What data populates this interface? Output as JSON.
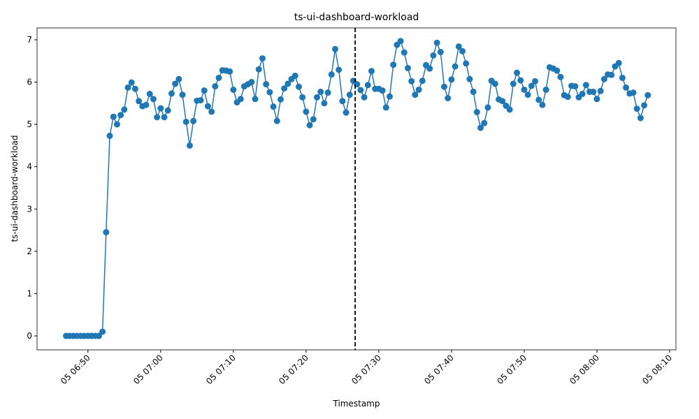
{
  "chart_data": {
    "type": "line",
    "title": "ts-ui-dashboard-workload",
    "xlabel": "Timestamp",
    "ylabel": "ts-ui-dashboard-workload",
    "color": "#1f77b4",
    "x": [
      "05 06:47:00",
      "05 06:47:30",
      "05 06:48:00",
      "05 06:48:30",
      "05 06:49:00",
      "05 06:49:30",
      "05 06:50:00",
      "05 06:50:30",
      "05 06:51:00",
      "05 06:51:30",
      "05 06:52:00",
      "05 06:52:30",
      "05 06:53:00",
      "05 06:53:30",
      "05 06:54:00",
      "05 06:54:30",
      "05 06:55:00",
      "05 06:55:30",
      "05 06:56:00",
      "05 06:56:30",
      "05 06:57:00",
      "05 06:57:30",
      "05 06:58:00",
      "05 06:58:30",
      "05 06:59:00",
      "05 06:59:30",
      "05 07:00:00",
      "05 07:00:30",
      "05 07:01:00",
      "05 07:01:30",
      "05 07:02:00",
      "05 07:02:30",
      "05 07:03:00",
      "05 07:03:30",
      "05 07:04:00",
      "05 07:04:30",
      "05 07:05:00",
      "05 07:05:30",
      "05 07:06:00",
      "05 07:06:30",
      "05 07:07:00",
      "05 07:07:30",
      "05 07:08:00",
      "05 07:08:30",
      "05 07:09:00",
      "05 07:09:30",
      "05 07:10:00",
      "05 07:10:30",
      "05 07:11:00",
      "05 07:11:30",
      "05 07:12:00",
      "05 07:12:30",
      "05 07:13:00",
      "05 07:13:30",
      "05 07:14:00",
      "05 07:14:30",
      "05 07:15:00",
      "05 07:15:30",
      "05 07:16:00",
      "05 07:16:30",
      "05 07:17:00",
      "05 07:17:30",
      "05 07:18:00",
      "05 07:18:30",
      "05 07:19:00",
      "05 07:19:30",
      "05 07:20:00",
      "05 07:20:30",
      "05 07:21:00",
      "05 07:21:30",
      "05 07:22:00",
      "05 07:22:30",
      "05 07:23:00",
      "05 07:23:30",
      "05 07:24:00",
      "05 07:24:30",
      "05 07:25:00",
      "05 07:25:30",
      "05 07:26:00",
      "05 07:26:30",
      "05 07:27:00",
      "05 07:27:30",
      "05 07:28:00",
      "05 07:28:30",
      "05 07:29:00",
      "05 07:29:30",
      "05 07:30:00",
      "05 07:30:30",
      "05 07:31:00",
      "05 07:31:30",
      "05 07:32:00",
      "05 07:32:30",
      "05 07:33:00",
      "05 07:33:30",
      "05 07:34:00",
      "05 07:34:30",
      "05 07:35:00",
      "05 07:35:30",
      "05 07:36:00",
      "05 07:36:30",
      "05 07:37:00",
      "05 07:37:30",
      "05 07:38:00",
      "05 07:38:30",
      "05 07:39:00",
      "05 07:39:30",
      "05 07:40:00",
      "05 07:40:30",
      "05 07:41:00",
      "05 07:41:30",
      "05 07:42:00",
      "05 07:42:30",
      "05 07:43:00",
      "05 07:43:30",
      "05 07:44:00",
      "05 07:44:30",
      "05 07:45:00",
      "05 07:45:30",
      "05 07:46:00",
      "05 07:46:30",
      "05 07:47:00",
      "05 07:47:30",
      "05 07:48:00",
      "05 07:48:30",
      "05 07:49:00",
      "05 07:49:30",
      "05 07:50:00",
      "05 07:50:30",
      "05 07:51:00",
      "05 07:51:30",
      "05 07:52:00",
      "05 07:52:30",
      "05 07:53:00",
      "05 07:53:30",
      "05 07:54:00",
      "05 07:54:30",
      "05 07:55:00",
      "05 07:55:30",
      "05 07:56:00",
      "05 07:56:30",
      "05 07:57:00",
      "05 07:57:30",
      "05 07:58:00",
      "05 07:58:30",
      "05 07:59:00",
      "05 07:59:30",
      "05 08:00:00",
      "05 08:00:30",
      "05 08:01:00",
      "05 08:01:30",
      "05 08:02:00",
      "05 08:02:30",
      "05 08:03:00",
      "05 08:03:30",
      "05 08:04:00",
      "05 08:04:30",
      "05 08:05:00",
      "05 08:05:30",
      "05 08:06:00",
      "05 08:06:30",
      "05 08:07:00"
    ],
    "values": [
      0,
      0,
      0,
      0,
      0,
      0,
      0,
      0,
      0,
      0,
      0.1,
      2.45,
      4.73,
      5.18,
      5.0,
      5.22,
      5.35,
      5.87,
      5.99,
      5.84,
      5.55,
      5.43,
      5.46,
      5.72,
      5.6,
      5.17,
      5.38,
      5.17,
      5.33,
      5.73,
      5.96,
      6.07,
      5.7,
      5.06,
      4.5,
      5.08,
      5.56,
      5.57,
      5.8,
      5.43,
      5.3,
      5.9,
      6.1,
      6.28,
      6.27,
      6.25,
      5.82,
      5.52,
      5.6,
      5.9,
      5.95,
      6.0,
      5.6,
      6.3,
      6.56,
      5.95,
      5.76,
      5.42,
      5.08,
      5.59,
      5.85,
      5.96,
      6.07,
      6.15,
      5.89,
      5.64,
      5.3,
      4.98,
      5.12,
      5.64,
      5.77,
      5.5,
      5.75,
      6.18,
      6.78,
      6.29,
      5.55,
      5.28,
      5.7,
      6.03,
      5.95,
      5.81,
      5.64,
      5.93,
      6.26,
      5.84,
      5.84,
      5.8,
      5.4,
      5.66,
      6.41,
      6.88,
      6.97,
      6.7,
      6.33,
      6.02,
      5.7,
      5.82,
      6.03,
      6.4,
      6.32,
      6.63,
      6.93,
      6.71,
      5.89,
      5.62,
      6.06,
      6.37,
      6.84,
      6.73,
      6.44,
      6.07,
      5.77,
      5.29,
      4.92,
      5.03,
      5.4,
      6.03,
      5.96,
      5.59,
      5.55,
      5.44,
      5.35,
      5.96,
      6.22,
      6.04,
      5.82,
      5.7,
      5.91,
      6.02,
      5.58,
      5.46,
      5.82,
      6.35,
      6.32,
      6.27,
      6.12,
      5.69,
      5.65,
      5.91,
      5.9,
      5.64,
      5.72,
      5.93,
      5.77,
      5.77,
      5.6,
      5.79,
      6.07,
      6.18,
      6.17,
      6.37,
      6.45,
      6.1,
      5.87,
      5.73,
      5.75,
      5.37,
      5.15,
      5.45,
      5.69
    ],
    "vline": "05 07:26:45",
    "xlim": [
      "05 06:43:00",
      "05 08:10:52"
    ],
    "xticks": [
      "05 06:50",
      "05 07:00",
      "05 07:10",
      "05 07:20",
      "05 07:30",
      "05 07:40",
      "05 07:50",
      "05 08:00",
      "05 08:10"
    ],
    "ylim": [
      -0.33,
      7.28
    ],
    "yticks": [
      0,
      1,
      2,
      3,
      4,
      5,
      6,
      7
    ]
  }
}
